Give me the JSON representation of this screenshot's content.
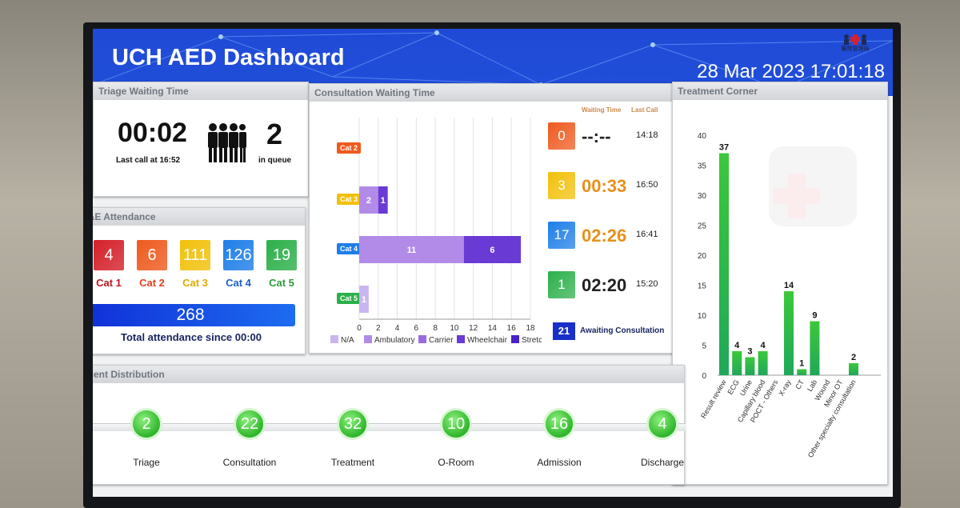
{
  "header": {
    "title": "UCH AED Dashboard",
    "datetime": "28 Mar 2023 17:01:18",
    "logo_text": "醫院管理局"
  },
  "triage": {
    "title": "Triage Waiting Time",
    "time": "00:02",
    "last_call_label": "Last call at",
    "last_call": "16:52",
    "queue": "2",
    "queue_label": "in queue"
  },
  "attendance": {
    "title": "A&E Attendance",
    "cats": [
      {
        "label": "Cat 1",
        "value": "4",
        "color": "#d4202a",
        "text_color": "#c0141e"
      },
      {
        "label": "Cat 2",
        "value": "6",
        "color": "#ee5a1e",
        "text_color": "#e0421e"
      },
      {
        "label": "Cat 3",
        "value": "111",
        "color": "#f2c00a",
        "text_color": "#e0a800"
      },
      {
        "label": "Cat 4",
        "value": "126",
        "color": "#1e7ee8",
        "text_color": "#1b5fc4"
      },
      {
        "label": "Cat 5",
        "value": "19",
        "color": "#2cb04a",
        "text_color": "#2c9a3c"
      }
    ],
    "total": "268",
    "total_label": "Total attendance since 00:00"
  },
  "consultation": {
    "title": "Consultation Waiting Time",
    "col_waiting": "Waiting Time",
    "col_lastcall": "Last Call",
    "awaiting": "21",
    "awaiting_label": "Awaiting Consultation",
    "rows": [
      {
        "cat": "Cat 2",
        "chip_color": "#ee5a1e",
        "count": "0",
        "count_color": "#ee5a1e",
        "wait": "--:--",
        "wait_color": "#222222",
        "last": "14:18"
      },
      {
        "cat": "Cat 3",
        "chip_color": "#f2c00a",
        "count": "3",
        "count_color": "#f2c00a",
        "wait": "00:33",
        "wait_color": "#e8901a",
        "last": "16:50"
      },
      {
        "cat": "Cat 4",
        "chip_color": "#1e7ee8",
        "count": "17",
        "count_color": "#1e7ee8",
        "wait": "02:26",
        "wait_color": "#e8901a",
        "last": "16:41"
      },
      {
        "cat": "Cat 5",
        "chip_color": "#2cb04a",
        "count": "1",
        "count_color": "#2cb04a",
        "wait": "02:20",
        "wait_color": "#222222",
        "last": "15:20"
      }
    ]
  },
  "chart_data": [
    {
      "type": "bar",
      "orientation": "horizontal",
      "stacked": true,
      "title": "Consultation Waiting Time",
      "categories": [
        "Cat 2",
        "Cat 3",
        "Cat 4",
        "Cat 5"
      ],
      "series": [
        {
          "name": "N/A",
          "color": "#c9b6f0",
          "values": [
            0,
            0,
            0,
            1
          ]
        },
        {
          "name": "Ambulatory",
          "color": "#b28be8",
          "values": [
            0,
            2,
            11,
            0
          ]
        },
        {
          "name": "Carrier",
          "color": "#9a6be0",
          "values": [
            0,
            0,
            0,
            0
          ]
        },
        {
          "name": "Wheelchair",
          "color": "#6a3ad4",
          "values": [
            0,
            1,
            6,
            0
          ]
        },
        {
          "name": "Stretcher",
          "color": "#4a20c8",
          "values": [
            0,
            0,
            0,
            0
          ]
        }
      ],
      "xlim": [
        0,
        18
      ],
      "xticks": [
        "0",
        "2",
        "4",
        "6",
        "8",
        "10",
        "12",
        "14",
        "16",
        "18"
      ],
      "grid": true,
      "legend": "bottom"
    },
    {
      "type": "bar",
      "title": "Treatment Corner",
      "categories": [
        "Result review",
        "ECG",
        "Urine",
        "Capillary blood",
        "POCT - Others",
        "X-ray",
        "CT",
        "Lab",
        "Wound",
        "Minor OT",
        "Other specialty consultation"
      ],
      "values": [
        37,
        4,
        3,
        4,
        0,
        14,
        1,
        9,
        0,
        0,
        2
      ],
      "ylim": [
        0,
        40
      ],
      "yticks": [
        "0",
        "5",
        "10",
        "15",
        "20",
        "25",
        "30",
        "35",
        "40"
      ],
      "grid": false
    }
  ],
  "distribution": {
    "title": "Patient Distribution",
    "items": [
      {
        "label": "Triage",
        "value": "2"
      },
      {
        "label": "Consultation",
        "value": "22"
      },
      {
        "label": "Treatment",
        "value": "32"
      },
      {
        "label": "O-Room",
        "value": "10"
      },
      {
        "label": "Admission",
        "value": "16"
      },
      {
        "label": "Discharge",
        "value": "4"
      }
    ]
  }
}
